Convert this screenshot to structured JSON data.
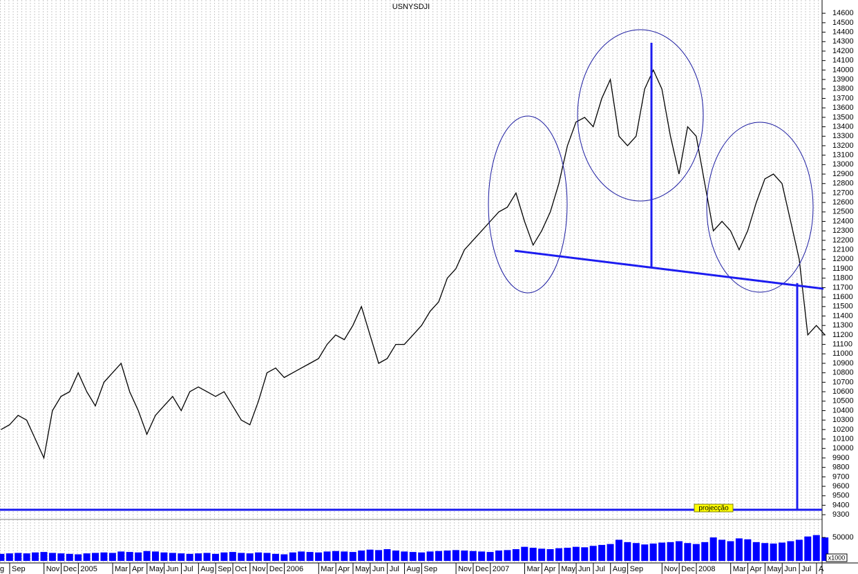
{
  "chart_data": {
    "type": "line",
    "title": "USNYSDJI",
    "categories": [
      "g",
      null,
      "Sep",
      null,
      null,
      null,
      "Nov",
      null,
      "Dec",
      null,
      "2005",
      null,
      null,
      null,
      "Mar",
      null,
      "Apr",
      null,
      "May",
      null,
      "Jun",
      null,
      "Jul",
      null,
      "Aug",
      null,
      "Sep",
      null,
      "Oct",
      null,
      "Nov",
      null,
      "Dec",
      null,
      "2006",
      null,
      null,
      null,
      "Mar",
      null,
      "Apr",
      null,
      "May",
      null,
      "Jun",
      null,
      "Jul",
      null,
      "Aug",
      null,
      "Sep",
      null,
      null,
      null,
      "Nov",
      null,
      "Dec",
      null,
      "2007",
      null,
      null,
      null,
      "Mar",
      null,
      "Apr",
      null,
      "May",
      null,
      "Jun",
      null,
      "Jul",
      null,
      "Aug",
      null,
      "Sep",
      null,
      null,
      null,
      "Nov",
      null,
      "Dec",
      null,
      "2008",
      null,
      null,
      null,
      "Mar",
      null,
      "Apr",
      null,
      "May",
      null,
      "Jun",
      null,
      "Jul",
      null,
      "A"
    ],
    "series": [
      {
        "color": "#000000",
        "values": [
          10200,
          10250,
          10350,
          10300,
          10100,
          9900,
          10400,
          10550,
          10600,
          10800,
          10600,
          10450,
          10700,
          10800,
          10900,
          10600,
          10400,
          10150,
          10350,
          10450,
          10550,
          10400,
          10600,
          10650,
          10600,
          10550,
          10600,
          10450,
          10300,
          10250,
          10500,
          10800,
          10850,
          10750,
          10800,
          10850,
          10900,
          10950,
          11100,
          11200,
          11150,
          11300,
          11500,
          11200,
          10900,
          10950,
          11100,
          11100,
          11200,
          11300,
          11450,
          11550,
          11800,
          11900,
          12100,
          12200,
          12300,
          12400,
          12500,
          12550,
          12700,
          12400,
          12150,
          12300,
          12500,
          12800,
          13200,
          13450,
          13500,
          13400,
          13700,
          13900,
          13300,
          13200,
          13300,
          13800,
          14000,
          13800,
          13300,
          12900,
          13400,
          13300,
          12800,
          12300,
          12400,
          12300,
          12100,
          12300,
          12600,
          12850,
          12900,
          12800,
          12400,
          12000,
          11200,
          11300,
          11200
        ]
      },
      {
        "type": "bar",
        "axis": "y2",
        "color": "#0000ff",
        "values": [
          15000,
          16000,
          17000,
          16000,
          18000,
          19000,
          17000,
          16000,
          15000,
          14000,
          16000,
          17000,
          18000,
          17000,
          20000,
          19000,
          18000,
          21000,
          20000,
          18000,
          17000,
          16000,
          15000,
          16000,
          17000,
          15000,
          18000,
          19000,
          17000,
          16000,
          18000,
          17000,
          15000,
          14000,
          18000,
          20000,
          19000,
          18000,
          20000,
          21000,
          20000,
          19000,
          22000,
          24000,
          23000,
          25000,
          22000,
          20000,
          19000,
          18000,
          20000,
          21000,
          22000,
          23000,
          22000,
          21000,
          20000,
          19000,
          22000,
          23000,
          25000,
          30000,
          28000,
          26000,
          25000,
          27000,
          28000,
          30000,
          29000,
          32000,
          34000,
          36000,
          45000,
          40000,
          38000,
          35000,
          37000,
          39000,
          40000,
          42000,
          38000,
          36000,
          40000,
          50000,
          45000,
          42000,
          48000,
          46000,
          40000,
          38000,
          37000,
          39000,
          42000,
          45000,
          52000,
          55000,
          50000
        ]
      }
    ],
    "ylim": [
      9250,
      14740
    ],
    "yticks": [
      9300,
      9400,
      9500,
      9600,
      9700,
      9800,
      9900,
      10000,
      10100,
      10200,
      10300,
      10400,
      10500,
      10600,
      10700,
      10800,
      10900,
      11000,
      11100,
      11200,
      11300,
      11400,
      11500,
      11600,
      11700,
      11800,
      11900,
      12000,
      12100,
      12200,
      12300,
      12400,
      12500,
      12600,
      12700,
      12800,
      12900,
      13000,
      13100,
      13200,
      13300,
      13400,
      13500,
      13600,
      13700,
      13800,
      13900,
      14000,
      14100,
      14200,
      14300,
      14400,
      14500,
      14600
    ],
    "y2lim": [
      0,
      84000
    ],
    "y2ticks": [
      50000
    ],
    "y2_unit_label": "x1000",
    "annotation": "projecção"
  }
}
